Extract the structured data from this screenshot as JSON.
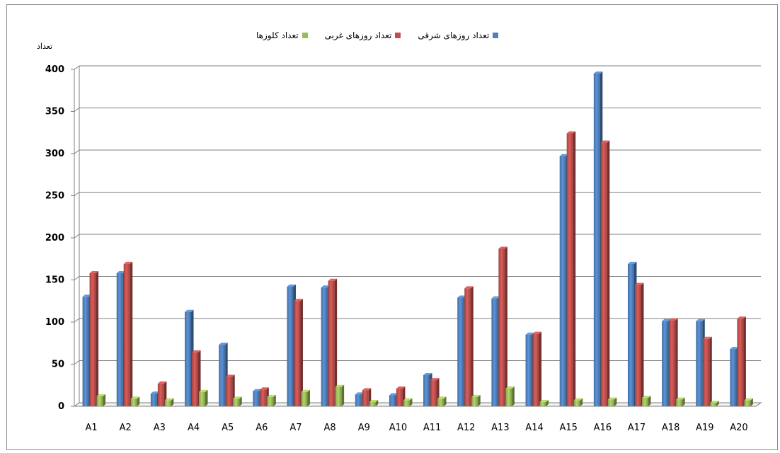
{
  "chart_data": {
    "type": "bar",
    "ylabel": "تعداد",
    "ylim": [
      0,
      400
    ],
    "yticks": [
      0,
      50,
      100,
      150,
      200,
      250,
      300,
      350,
      400
    ],
    "grid": true,
    "legend_position": "top-center",
    "categories": [
      "A1",
      "A2",
      "A3",
      "A4",
      "A5",
      "A6",
      "A7",
      "A8",
      "A9",
      "A10",
      "A11",
      "A12",
      "A13",
      "A14",
      "A15",
      "A16",
      "A17",
      "A18",
      "A19",
      "A20"
    ],
    "series": [
      {
        "name": "تعداد روزهای شرقی",
        "color": "#4f81bd",
        "values": [
          130,
          158,
          15,
          112,
          73,
          18,
          142,
          141,
          14,
          13,
          37,
          129,
          128,
          85,
          297,
          395,
          169,
          101,
          101,
          68
        ]
      },
      {
        "name": "تعداد روزهای غربی",
        "color": "#c0504d",
        "values": [
          158,
          169,
          27,
          64,
          35,
          20,
          125,
          149,
          19,
          21,
          31,
          140,
          187,
          86,
          324,
          313,
          144,
          102,
          80,
          104
        ]
      },
      {
        "name": "تعداد کلوزها",
        "color": "#9bbb59",
        "values": [
          12,
          9,
          7,
          17,
          9,
          11,
          17,
          23,
          5,
          7,
          9,
          11,
          21,
          5,
          7,
          8,
          10,
          8,
          4,
          7
        ]
      }
    ]
  }
}
